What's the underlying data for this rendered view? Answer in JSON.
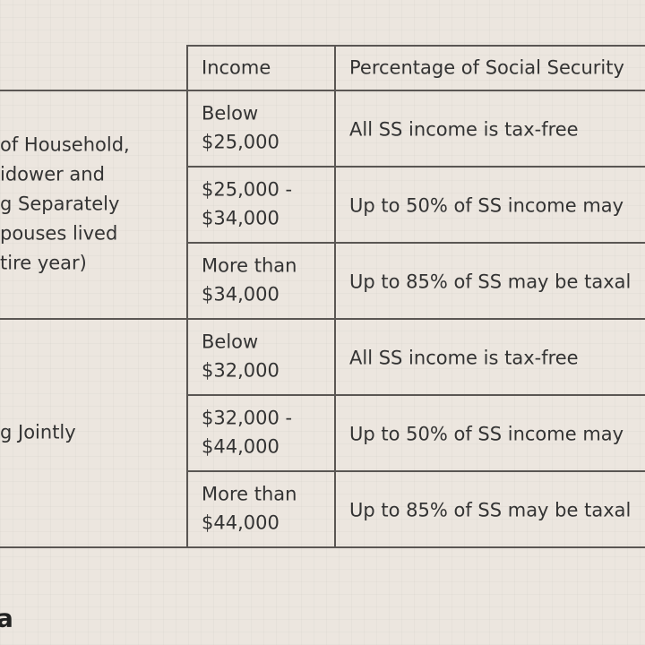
{
  "header": {
    "income": "Income",
    "percentage": "Percentage of Social Security"
  },
  "groups": [
    {
      "label_lines": [
        "of Household,",
        "idower and",
        "g Separately",
        "pouses lived",
        "tire year)"
      ],
      "rows": [
        {
          "income": [
            "Below",
            "$25,000"
          ],
          "percentage": "All SS income is tax-free"
        },
        {
          "income": [
            "$25,000 -",
            "$34,000"
          ],
          "percentage": "Up to 50% of SS income may"
        },
        {
          "income": [
            "More than",
            "$34,000"
          ],
          "percentage": "Up to 85% of SS may be taxal"
        }
      ]
    },
    {
      "label_lines": [
        "g Jointly"
      ],
      "rows": [
        {
          "income": [
            "Below",
            "$32,000"
          ],
          "percentage": "All SS income is tax-free"
        },
        {
          "income": [
            "$32,000 -",
            "$44,000"
          ],
          "percentage": "Up to 50% of SS income may"
        },
        {
          "income": [
            "More than",
            "$44,000"
          ],
          "percentage": "Up to 85% of SS may be taxal"
        }
      ]
    }
  ],
  "footer": {
    "logo": "a"
  }
}
